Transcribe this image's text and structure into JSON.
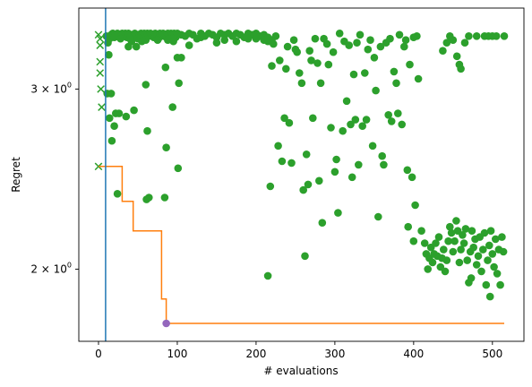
{
  "chart_data": {
    "type": "scatter",
    "title": "",
    "xlabel": "# evaluations",
    "ylabel": "Regret",
    "yscale": "log",
    "xlim": [
      -25,
      540
    ],
    "ylim": [
      1.7,
      3.6
    ],
    "grid": false,
    "legend": "none",
    "x_ticks": [
      {
        "value": 0,
        "label": "0"
      },
      {
        "value": 100,
        "label": "100"
      },
      {
        "value": 200,
        "label": "200"
      },
      {
        "value": 300,
        "label": "300"
      },
      {
        "value": 400,
        "label": "400"
      },
      {
        "value": 500,
        "label": "500"
      }
    ],
    "y_ticks": [
      {
        "value": 2,
        "label": "2 × 10",
        "exp": "0"
      },
      {
        "value": 3,
        "label": "3 × 10",
        "exp": "0"
      }
    ],
    "initial_design_end_x": 9,
    "colors": {
      "evaluations": "#2ca02c",
      "incumbent": "#ff7f0e",
      "vertical_line": "#1f77b4",
      "final_point": "#9467bd"
    },
    "initial_design": {
      "marker": "x",
      "points": [
        [
          0,
          3.39
        ],
        [
          2,
          3.36
        ],
        [
          2,
          3.31
        ],
        [
          2,
          3.19
        ],
        [
          2,
          3.11
        ],
        [
          3,
          3.0
        ],
        [
          4,
          2.88
        ],
        [
          0,
          2.52
        ]
      ]
    },
    "incumbent_trajectory": {
      "x": [
        0,
        30,
        30,
        44,
        44,
        80,
        80,
        82,
        82,
        86,
        86,
        515
      ],
      "y": [
        2.52,
        2.52,
        2.33,
        2.33,
        2.18,
        2.18,
        1.87,
        1.87,
        1.87,
        1.87,
        1.77,
        1.77
      ]
    },
    "final_point": [
      86,
      1.77
    ],
    "evaluations": [
      [
        10,
        3.38
      ],
      [
        12,
        3.33
      ],
      [
        14,
        3.36
      ],
      [
        16,
        3.39
      ],
      [
        18,
        3.4
      ],
      [
        20,
        3.37
      ],
      [
        22,
        3.39
      ],
      [
        24,
        3.4
      ],
      [
        26,
        3.38
      ],
      [
        28,
        3.36
      ],
      [
        30,
        3.4
      ],
      [
        32,
        3.39
      ],
      [
        34,
        3.4
      ],
      [
        36,
        3.37
      ],
      [
        38,
        3.4
      ],
      [
        40,
        3.39
      ],
      [
        42,
        3.34
      ],
      [
        44,
        3.38
      ],
      [
        46,
        3.4
      ],
      [
        48,
        3.38
      ],
      [
        50,
        3.36
      ],
      [
        52,
        3.39
      ],
      [
        54,
        3.4
      ],
      [
        56,
        3.37
      ],
      [
        58,
        3.4
      ],
      [
        60,
        3.35
      ],
      [
        62,
        3.4
      ],
      [
        64,
        3.38
      ],
      [
        66,
        3.4
      ],
      [
        68,
        3.39
      ],
      [
        70,
        3.37
      ],
      [
        72,
        3.4
      ],
      [
        74,
        3.39
      ],
      [
        76,
        3.36
      ],
      [
        78,
        3.4
      ],
      [
        80,
        3.38
      ],
      [
        82,
        3.4
      ],
      [
        84,
        3.39
      ],
      [
        86,
        3.37
      ],
      [
        88,
        3.4
      ],
      [
        90,
        3.38
      ],
      [
        92,
        3.4
      ],
      [
        94,
        3.39
      ],
      [
        96,
        3.4
      ],
      [
        98,
        3.37
      ],
      [
        100,
        3.4
      ],
      [
        105,
        3.39
      ],
      [
        110,
        3.38
      ],
      [
        115,
        3.4
      ],
      [
        120,
        3.39
      ],
      [
        125,
        3.36
      ],
      [
        130,
        3.4
      ],
      [
        135,
        3.38
      ],
      [
        140,
        3.4
      ],
      [
        145,
        3.39
      ],
      [
        150,
        3.37
      ],
      [
        155,
        3.4
      ],
      [
        160,
        3.39
      ],
      [
        165,
        3.4
      ],
      [
        170,
        3.38
      ],
      [
        175,
        3.4
      ],
      [
        180,
        3.39
      ],
      [
        185,
        3.37
      ],
      [
        190,
        3.4
      ],
      [
        195,
        3.39
      ],
      [
        200,
        3.4
      ],
      [
        205,
        3.38
      ],
      [
        210,
        3.39
      ],
      [
        215,
        3.37
      ],
      [
        220,
        3.35
      ],
      [
        13,
        3.24
      ],
      [
        11,
        2.97
      ],
      [
        14,
        2.81
      ],
      [
        16,
        2.97
      ],
      [
        20,
        2.76
      ],
      [
        22,
        2.84
      ],
      [
        26,
        2.84
      ],
      [
        35,
        2.82
      ],
      [
        38,
        3.3
      ],
      [
        40,
        3.36
      ],
      [
        45,
        2.86
      ],
      [
        48,
        3.3
      ],
      [
        55,
        3.34
      ],
      [
        60,
        3.03
      ],
      [
        62,
        2.73
      ],
      [
        75,
        3.35
      ],
      [
        85,
        3.15
      ],
      [
        86,
        2.63
      ],
      [
        88,
        3.35
      ],
      [
        95,
        3.34
      ],
      [
        100,
        3.22
      ],
      [
        102,
        3.04
      ],
      [
        105,
        3.22
      ],
      [
        115,
        3.31
      ],
      [
        130,
        3.37
      ],
      [
        150,
        3.33
      ],
      [
        160,
        3.35
      ],
      [
        175,
        3.34
      ],
      [
        190,
        3.36
      ],
      [
        200,
        3.36
      ],
      [
        210,
        3.35
      ],
      [
        215,
        3.34
      ],
      [
        17,
        2.67
      ],
      [
        24,
        2.37
      ],
      [
        61,
        2.34
      ],
      [
        64,
        2.35
      ],
      [
        101,
        2.51
      ],
      [
        84,
        2.35
      ],
      [
        94,
        2.88
      ],
      [
        215,
        1.97
      ],
      [
        218,
        2.41
      ],
      [
        220,
        3.16
      ],
      [
        222,
        3.32
      ],
      [
        225,
        3.38
      ],
      [
        228,
        2.64
      ],
      [
        230,
        3.2
      ],
      [
        233,
        2.55
      ],
      [
        236,
        2.81
      ],
      [
        238,
        3.14
      ],
      [
        240,
        3.3
      ],
      [
        242,
        2.78
      ],
      [
        245,
        2.54
      ],
      [
        248,
        3.35
      ],
      [
        250,
        3.28
      ],
      [
        252,
        3.26
      ],
      [
        255,
        3.11
      ],
      [
        258,
        3.04
      ],
      [
        260,
        2.39
      ],
      [
        262,
        2.06
      ],
      [
        264,
        2.59
      ],
      [
        266,
        2.42
      ],
      [
        268,
        3.27
      ],
      [
        270,
        3.2
      ],
      [
        272,
        2.81
      ],
      [
        275,
        3.36
      ],
      [
        278,
        3.18
      ],
      [
        280,
        2.44
      ],
      [
        282,
        3.04
      ],
      [
        284,
        2.22
      ],
      [
        286,
        3.36
      ],
      [
        290,
        3.32
      ],
      [
        292,
        3.17
      ],
      [
        295,
        2.75
      ],
      [
        298,
        3.26
      ],
      [
        300,
        2.49
      ],
      [
        302,
        2.56
      ],
      [
        304,
        2.27
      ],
      [
        306,
        3.4
      ],
      [
        310,
        2.73
      ],
      [
        312,
        3.34
      ],
      [
        315,
        2.92
      ],
      [
        318,
        3.31
      ],
      [
        320,
        2.77
      ],
      [
        322,
        2.46
      ],
      [
        324,
        3.1
      ],
      [
        326,
        2.8
      ],
      [
        328,
        3.33
      ],
      [
        330,
        2.53
      ],
      [
        332,
        3.39
      ],
      [
        335,
        2.76
      ],
      [
        338,
        3.11
      ],
      [
        340,
        2.8
      ],
      [
        342,
        3.28
      ],
      [
        345,
        3.35
      ],
      [
        348,
        2.64
      ],
      [
        350,
        3.22
      ],
      [
        352,
        2.99
      ],
      [
        355,
        2.25
      ],
      [
        358,
        3.3
      ],
      [
        360,
        2.58
      ],
      [
        362,
        2.53
      ],
      [
        365,
        3.33
      ],
      [
        368,
        2.83
      ],
      [
        370,
        3.36
      ],
      [
        372,
        2.79
      ],
      [
        375,
        3.12
      ],
      [
        378,
        3.04
      ],
      [
        380,
        2.84
      ],
      [
        382,
        3.39
      ],
      [
        385,
        2.77
      ],
      [
        388,
        3.3
      ],
      [
        390,
        3.35
      ],
      [
        392,
        2.5
      ],
      [
        395,
        3.17
      ],
      [
        398,
        2.46
      ],
      [
        400,
        3.37
      ],
      [
        402,
        2.31
      ],
      [
        404,
        3.38
      ],
      [
        406,
        3.07
      ],
      [
        393,
        2.2
      ],
      [
        400,
        2.13
      ],
      [
        410,
        2.18
      ],
      [
        414,
        2.12
      ],
      [
        416,
        2.07
      ],
      [
        418,
        2.0
      ],
      [
        420,
        2.05
      ],
      [
        422,
        2.1
      ],
      [
        424,
        2.03
      ],
      [
        426,
        2.07
      ],
      [
        428,
        2.12
      ],
      [
        430,
        2.06
      ],
      [
        432,
        2.15
      ],
      [
        434,
        2.01
      ],
      [
        436,
        2.05
      ],
      [
        438,
        2.09
      ],
      [
        440,
        1.99
      ],
      [
        442,
        2.04
      ],
      [
        444,
        2.13
      ],
      [
        446,
        2.2
      ],
      [
        448,
        2.17
      ],
      [
        450,
        2.08
      ],
      [
        452,
        2.13
      ],
      [
        454,
        2.23
      ],
      [
        456,
        2.18
      ],
      [
        458,
        2.03
      ],
      [
        460,
        2.09
      ],
      [
        462,
        2.16
      ],
      [
        464,
        2.12
      ],
      [
        466,
        2.19
      ],
      [
        468,
        2.04
      ],
      [
        470,
        1.94
      ],
      [
        472,
        2.08
      ],
      [
        474,
        2.18
      ],
      [
        476,
        2.1
      ],
      [
        478,
        2.14
      ],
      [
        480,
        2.02
      ],
      [
        482,
        2.06
      ],
      [
        484,
        2.15
      ],
      [
        486,
        1.99
      ],
      [
        488,
        2.09
      ],
      [
        490,
        2.17
      ],
      [
        492,
        1.93
      ],
      [
        494,
        2.04
      ],
      [
        496,
        2.11
      ],
      [
        498,
        2.18
      ],
      [
        500,
        2.07
      ],
      [
        502,
        2.01
      ],
      [
        504,
        2.14
      ],
      [
        506,
        1.98
      ],
      [
        508,
        2.09
      ],
      [
        510,
        1.93
      ],
      [
        512,
        2.15
      ],
      [
        514,
        2.08
      ],
      [
        473,
        1.96
      ],
      [
        497,
        1.88
      ],
      [
        437,
        3.27
      ],
      [
        442,
        3.33
      ],
      [
        446,
        3.38
      ],
      [
        450,
        3.35
      ],
      [
        455,
        3.23
      ],
      [
        458,
        3.17
      ],
      [
        460,
        3.14
      ],
      [
        465,
        3.33
      ],
      [
        470,
        3.38
      ],
      [
        480,
        3.38
      ],
      [
        490,
        3.38
      ],
      [
        495,
        3.38
      ],
      [
        500,
        3.38
      ],
      [
        505,
        3.38
      ],
      [
        515,
        3.38
      ]
    ]
  }
}
